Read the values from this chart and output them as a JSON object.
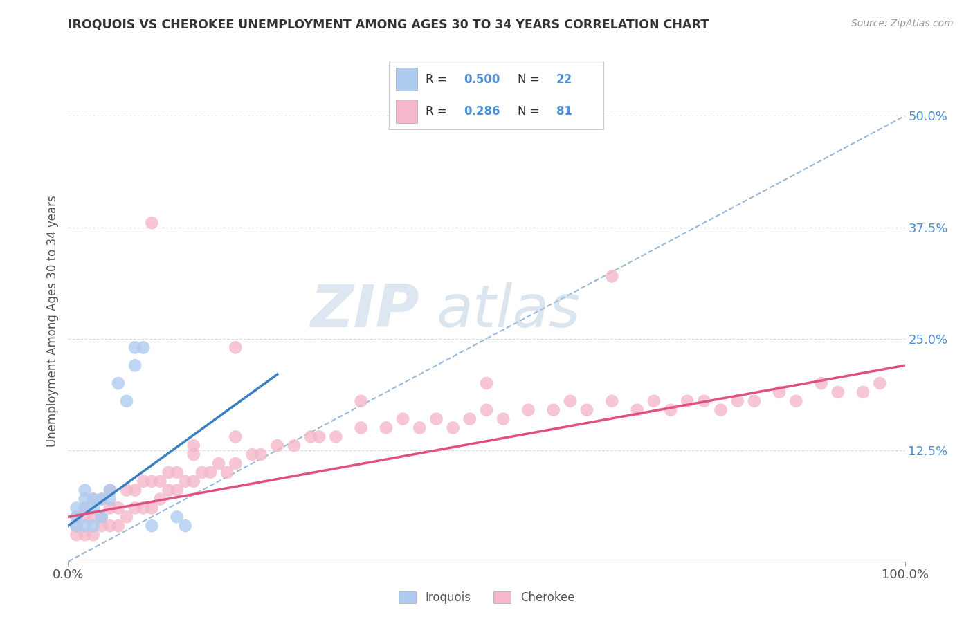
{
  "title": "IROQUOIS VS CHEROKEE UNEMPLOYMENT AMONG AGES 30 TO 34 YEARS CORRELATION CHART",
  "source": "Source: ZipAtlas.com",
  "ylabel": "Unemployment Among Ages 30 to 34 years",
  "xlim": [
    0.0,
    1.0
  ],
  "ylim": [
    0.0,
    0.54
  ],
  "xticks": [
    0.0,
    1.0
  ],
  "xtick_labels": [
    "0.0%",
    "100.0%"
  ],
  "ytick_positions": [
    0.125,
    0.25,
    0.375,
    0.5
  ],
  "ytick_labels": [
    "12.5%",
    "25.0%",
    "37.5%",
    "50.0%"
  ],
  "iroquois_R": "0.500",
  "iroquois_N": "22",
  "cherokee_R": "0.286",
  "cherokee_N": "81",
  "iroquois_color": "#aeccf0",
  "cherokee_color": "#f4b8ca",
  "trendline_iroquois_color": "#3a7fc1",
  "trendline_cherokee_color": "#e05080",
  "diagonal_color": "#9ab8d8",
  "background_color": "#ffffff",
  "grid_color": "#d8d8d8",
  "ytick_color": "#4a90d9",
  "watermark_zip": "ZIP",
  "watermark_atlas": "atlas",
  "legend_text_color": "#333333",
  "legend_value_color": "#4a90d9",
  "iroquois_x": [
    0.01,
    0.01,
    0.01,
    0.02,
    0.02,
    0.02,
    0.02,
    0.03,
    0.03,
    0.03,
    0.04,
    0.04,
    0.05,
    0.05,
    0.06,
    0.07,
    0.08,
    0.08,
    0.09,
    0.1,
    0.13,
    0.14
  ],
  "iroquois_y": [
    0.04,
    0.05,
    0.06,
    0.04,
    0.06,
    0.07,
    0.08,
    0.04,
    0.06,
    0.07,
    0.05,
    0.07,
    0.07,
    0.08,
    0.2,
    0.18,
    0.22,
    0.24,
    0.24,
    0.04,
    0.05,
    0.04
  ],
  "cherokee_x": [
    0.01,
    0.01,
    0.01,
    0.02,
    0.02,
    0.02,
    0.03,
    0.03,
    0.03,
    0.04,
    0.04,
    0.04,
    0.05,
    0.05,
    0.05,
    0.06,
    0.06,
    0.07,
    0.07,
    0.08,
    0.08,
    0.09,
    0.09,
    0.1,
    0.1,
    0.11,
    0.11,
    0.12,
    0.12,
    0.13,
    0.13,
    0.14,
    0.15,
    0.15,
    0.16,
    0.17,
    0.18,
    0.19,
    0.2,
    0.2,
    0.22,
    0.23,
    0.25,
    0.27,
    0.29,
    0.3,
    0.32,
    0.35,
    0.38,
    0.4,
    0.42,
    0.44,
    0.46,
    0.48,
    0.5,
    0.52,
    0.55,
    0.58,
    0.6,
    0.62,
    0.65,
    0.68,
    0.7,
    0.72,
    0.74,
    0.76,
    0.78,
    0.8,
    0.82,
    0.85,
    0.87,
    0.9,
    0.92,
    0.95,
    0.97,
    0.1,
    0.2,
    0.15,
    0.35,
    0.5,
    0.65
  ],
  "cherokee_y": [
    0.03,
    0.04,
    0.05,
    0.03,
    0.05,
    0.06,
    0.03,
    0.05,
    0.07,
    0.04,
    0.05,
    0.07,
    0.04,
    0.06,
    0.08,
    0.04,
    0.06,
    0.05,
    0.08,
    0.06,
    0.08,
    0.06,
    0.09,
    0.06,
    0.09,
    0.07,
    0.09,
    0.08,
    0.1,
    0.08,
    0.1,
    0.09,
    0.09,
    0.12,
    0.1,
    0.1,
    0.11,
    0.1,
    0.11,
    0.14,
    0.12,
    0.12,
    0.13,
    0.13,
    0.14,
    0.14,
    0.14,
    0.15,
    0.15,
    0.16,
    0.15,
    0.16,
    0.15,
    0.16,
    0.17,
    0.16,
    0.17,
    0.17,
    0.18,
    0.17,
    0.18,
    0.17,
    0.18,
    0.17,
    0.18,
    0.18,
    0.17,
    0.18,
    0.18,
    0.19,
    0.18,
    0.2,
    0.19,
    0.19,
    0.2,
    0.38,
    0.24,
    0.13,
    0.18,
    0.2,
    0.32
  ],
  "trendline_iroquois_x0": 0.0,
  "trendline_iroquois_y0": 0.04,
  "trendline_iroquois_x1": 0.25,
  "trendline_iroquois_y1": 0.21,
  "trendline_cherokee_x0": 0.0,
  "trendline_cherokee_y0": 0.05,
  "trendline_cherokee_x1": 1.0,
  "trendline_cherokee_y1": 0.22
}
